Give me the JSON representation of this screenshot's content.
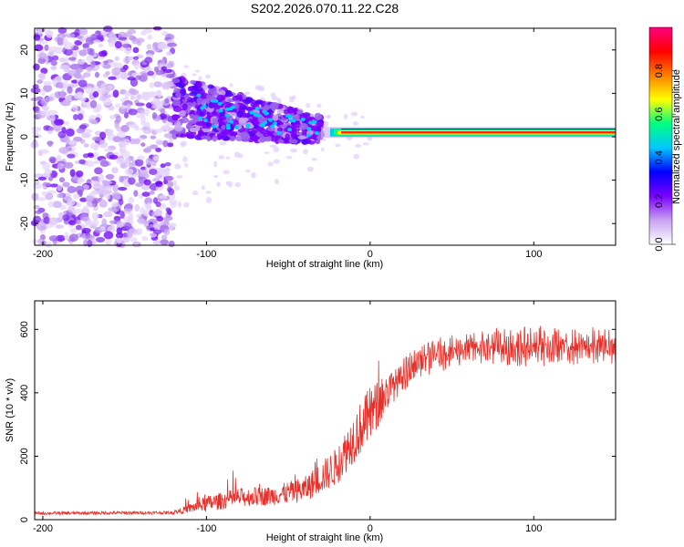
{
  "title": "S202.2026.070.11.22.C28",
  "chart_data": [
    {
      "type": "heatmap",
      "name": "spectrogram",
      "xlabel": "Height of straight line (km)",
      "ylabel": "Frequency (Hz)",
      "xlim": [
        -205,
        150
      ],
      "ylim": [
        -25,
        25
      ],
      "xticks": [
        -200,
        -100,
        0,
        100
      ],
      "yticks": [
        -20,
        -10,
        0,
        10,
        20
      ],
      "colorbar": {
        "label": "Normalized spectral amplitude",
        "range": [
          0,
          1
        ],
        "ticks": [
          "0.0",
          "0.2",
          "0.4",
          "0.6",
          "0.8"
        ],
        "colors": [
          "#ffffff",
          "#c8a2f0",
          "#7b00ff",
          "#0000ff",
          "#00c8ff",
          "#00ff80",
          "#ffff00",
          "#ff8000",
          "#ff0000",
          "#ff0080"
        ]
      },
      "regions": [
        {
          "x": [
            -205,
            -120
          ],
          "freq": [
            -25,
            25
          ],
          "desc": "broadband noise",
          "amplitude": [
            0.0,
            0.2
          ]
        },
        {
          "x": [
            -120,
            -30
          ],
          "freq": [
            -5,
            12
          ],
          "desc": "scattered onset",
          "amplitude": [
            0.1,
            0.3
          ]
        },
        {
          "x": [
            -30,
            150
          ],
          "freq": [
            0,
            2
          ],
          "desc": "narrow carrier line",
          "amplitude": [
            0.5,
            0.95
          ]
        }
      ]
    },
    {
      "type": "line",
      "name": "snr",
      "xlabel": "Height of straight line (km)",
      "ylabel": "SNR (10 * v/v)",
      "xlim": [
        -205,
        150
      ],
      "ylim": [
        0,
        690
      ],
      "xticks": [
        -200,
        -100,
        0,
        100
      ],
      "yticks": [
        0,
        200,
        400,
        600
      ],
      "color": "#e8302a",
      "trend_x": [
        -205,
        -120,
        -100,
        -80,
        -60,
        -40,
        -20,
        -10,
        0,
        10,
        20,
        30,
        40,
        60,
        80,
        100,
        120,
        150
      ],
      "trend_y": [
        20,
        22,
        50,
        70,
        75,
        95,
        170,
        260,
        330,
        400,
        450,
        500,
        520,
        540,
        545,
        545,
        545,
        545
      ],
      "noise_amp": [
        5,
        5,
        25,
        30,
        30,
        40,
        60,
        80,
        90,
        60,
        40,
        35,
        35,
        35,
        40,
        45,
        40,
        40
      ]
    }
  ]
}
